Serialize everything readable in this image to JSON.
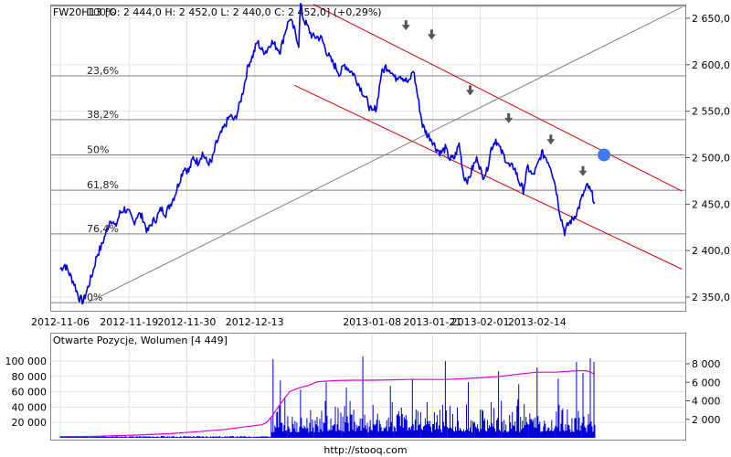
{
  "chart_data": [
    {
      "type": "line",
      "ohlc_header": "FW20H13 [O: 2 444,0  H: 2 452,0  L: 2 440,0  C: 2 452,0] (+0,29%)",
      "x_tick_labels": [
        "2012-11-06",
        "2012-11-19",
        "2012-11-30",
        "2012-12-13",
        "2013-01-08",
        "2013-01-21",
        "2013-02-01",
        "2013-02-14"
      ],
      "y_tick_labels": [
        "2 650,0",
        "2 600,0",
        "2 550,0",
        "2 500,0",
        "2 450,0",
        "2 400,0",
        "2 350,0"
      ],
      "ylim": [
        2336,
        2670
      ],
      "grid": true,
      "series": [
        {
          "color": "#0000e0",
          "x_index": [
            0,
            5,
            10,
            15,
            20,
            25,
            30,
            35,
            40,
            45,
            50,
            55,
            60,
            65,
            70,
            75,
            80,
            85,
            90,
            95,
            100,
            105,
            110,
            115,
            120,
            125,
            130,
            135,
            140,
            145,
            150,
            155,
            160,
            165,
            170,
            175,
            180,
            185,
            190,
            195,
            200,
            205,
            210,
            215,
            220,
            225,
            230,
            235,
            240,
            245,
            250,
            255,
            260,
            262,
            265,
            270,
            275,
            280,
            285,
            290,
            295,
            300,
            305,
            310,
            315,
            320,
            325,
            330,
            335,
            340,
            345,
            350,
            355,
            360,
            365,
            370,
            375,
            380,
            385,
            390,
            395,
            400,
            405,
            410,
            415,
            420,
            425,
            430,
            435,
            440,
            445,
            450,
            455,
            460,
            465,
            470,
            475,
            480,
            485,
            490,
            495,
            500,
            505,
            510,
            515,
            520,
            525,
            530,
            535,
            540,
            545,
            550,
            555,
            560,
            565,
            570,
            575,
            580,
            583
          ],
          "values": [
            2380,
            2385,
            2375,
            2365,
            2350,
            2345,
            2360,
            2375,
            2395,
            2405,
            2420,
            2435,
            2425,
            2440,
            2445,
            2440,
            2430,
            2440,
            2435,
            2420,
            2430,
            2435,
            2445,
            2440,
            2450,
            2460,
            2475,
            2490,
            2485,
            2500,
            2495,
            2505,
            2495,
            2495,
            2515,
            2525,
            2535,
            2545,
            2540,
            2555,
            2575,
            2600,
            2610,
            2625,
            2615,
            2615,
            2625,
            2620,
            2615,
            2635,
            2650,
            2638,
            2622,
            2665,
            2650,
            2640,
            2630,
            2630,
            2628,
            2615,
            2605,
            2598,
            2590,
            2600,
            2595,
            2590,
            2580,
            2570,
            2560,
            2548,
            2555,
            2590,
            2598,
            2595,
            2585,
            2590,
            2585,
            2580,
            2595,
            2565,
            2535,
            2525,
            2520,
            2510,
            2505,
            2510,
            2498,
            2500,
            2515,
            2480,
            2475,
            2490,
            2500,
            2480,
            2485,
            2510,
            2520,
            2508,
            2500,
            2490,
            2490,
            2475,
            2465,
            2490,
            2480,
            2490,
            2505,
            2500,
            2490,
            2470,
            2440,
            2420,
            2430,
            2435,
            2445,
            2460,
            2470,
            2460,
            2452
          ]
        }
      ],
      "fibonacci_levels": [
        {
          "label": "23,6%",
          "value": 2588
        },
        {
          "label": "38,2%",
          "value": 2541
        },
        {
          "label": "50%",
          "value": 2503
        },
        {
          "label": "61,8%",
          "value": 2465
        },
        {
          "label": "76,4%",
          "value": 2418
        },
        {
          "label": "0%",
          "value": 2344
        }
      ],
      "fib_top_label": "100%",
      "fib_top_value": 2663,
      "channel_lines": [
        {
          "color": "#d40000",
          "x_index": [
            276,
            678
          ],
          "values": [
            2665,
            2464
          ]
        },
        {
          "color": "#d40000",
          "x_index": [
            255,
            678
          ],
          "values": [
            2578,
            2380
          ]
        }
      ],
      "trend_line": {
        "color": "#808080",
        "x_index": [
          30,
          678
        ],
        "values": [
          2344,
          2662
        ]
      },
      "arrow_markers": [
        {
          "x_index": 377,
          "value": 2640
        },
        {
          "x_index": 405,
          "value": 2630
        },
        {
          "x_index": 447,
          "value": 2570
        },
        {
          "x_index": 489,
          "value": 2540
        },
        {
          "x_index": 535,
          "value": 2517
        },
        {
          "x_index": 570,
          "value": 2483
        }
      ],
      "highlight_point": {
        "x_index": 593,
        "value": 2503,
        "color": "#3a7cf0"
      }
    },
    {
      "type": "bar",
      "title": "Otwarte Pozycje, Wolumen [4 449]",
      "left_tick_labels": [
        "100 000",
        "80 000",
        "60 000",
        "40 000",
        "20 000"
      ],
      "right_tick_labels": [
        "8 000",
        "6 000",
        "4 000",
        "2 000"
      ],
      "ylim_left": [
        0,
        115000
      ],
      "ylim_right": [
        0,
        9500
      ],
      "open_interest": {
        "color": "#dd00dd",
        "x_index": [
          0,
          40,
          80,
          120,
          150,
          180,
          200,
          220,
          225,
          230,
          240,
          245,
          250,
          260,
          270,
          280,
          300,
          320,
          340,
          360,
          380,
          400,
          420,
          440,
          460,
          480,
          500,
          520,
          540,
          560,
          570,
          575,
          580,
          583
        ],
        "values": [
          1500,
          2000,
          3500,
          5500,
          8000,
          11000,
          14000,
          17000,
          20000,
          27000,
          44000,
          52000,
          60000,
          65000,
          68000,
          73000,
          74500,
          75000,
          75000,
          75500,
          76000,
          76000,
          76000,
          77000,
          78500,
          80000,
          83000,
          85500,
          85500,
          87000,
          87500,
          87000,
          84500,
          83000
        ]
      },
      "volume": {
        "color": "#0000e0",
        "start_index": 230,
        "end_index": 583,
        "typical_max": 4000,
        "spikes": [
          {
            "x_index": 232,
            "value": 8500
          },
          {
            "x_index": 240,
            "value": 6200
          },
          {
            "x_index": 262,
            "value": 5200
          },
          {
            "x_index": 290,
            "value": 6000
          },
          {
            "x_index": 312,
            "value": 5400
          },
          {
            "x_index": 330,
            "value": 8800
          },
          {
            "x_index": 360,
            "value": 5600
          },
          {
            "x_index": 384,
            "value": 6400
          },
          {
            "x_index": 420,
            "value": 8300
          },
          {
            "x_index": 445,
            "value": 6000
          },
          {
            "x_index": 478,
            "value": 7200
          },
          {
            "x_index": 500,
            "value": 5800
          },
          {
            "x_index": 520,
            "value": 7600
          },
          {
            "x_index": 543,
            "value": 6400
          },
          {
            "x_index": 563,
            "value": 8200
          },
          {
            "x_index": 570,
            "value": 7000
          },
          {
            "x_index": 578,
            "value": 8600
          },
          {
            "x_index": 582,
            "value": 8200
          }
        ]
      }
    }
  ],
  "footer_url": "http://stooq.com"
}
